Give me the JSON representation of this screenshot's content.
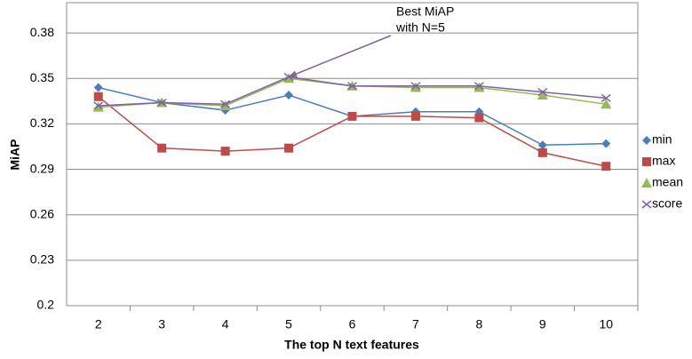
{
  "chart_data": {
    "type": "line",
    "annotation": [
      "Best MiAP",
      "with N=5"
    ],
    "y_label": "MiAP",
    "x_label": "The top N text features",
    "categories": [
      "2",
      "3",
      "4",
      "5",
      "6",
      "7",
      "8",
      "9",
      "10"
    ],
    "series": [
      {
        "name": "min",
        "color": "#4a7ebb",
        "marker": "diamond",
        "values": [
          0.344,
          0.334,
          0.329,
          0.339,
          0.325,
          0.328,
          0.328,
          0.306,
          0.307
        ]
      },
      {
        "name": "max",
        "color": "#be4b48",
        "marker": "square",
        "values": [
          0.338,
          0.304,
          0.302,
          0.304,
          0.325,
          0.325,
          0.324,
          0.301,
          0.292
        ]
      },
      {
        "name": "mean",
        "color": "#98b954",
        "marker": "triangle",
        "values": [
          0.331,
          0.334,
          0.332,
          0.35,
          0.345,
          0.344,
          0.344,
          0.339,
          0.333
        ]
      },
      {
        "name": "score",
        "color": "#7e62a1",
        "marker": "cross",
        "values": [
          0.332,
          0.334,
          0.333,
          0.351,
          0.345,
          0.345,
          0.345,
          0.341,
          0.337
        ]
      }
    ],
    "ylim": [
      0.2,
      0.4
    ],
    "yticks": [
      0.2,
      0.23,
      0.26,
      0.29,
      0.32,
      0.35,
      0.38
    ],
    "grid": true,
    "legend": "right"
  }
}
